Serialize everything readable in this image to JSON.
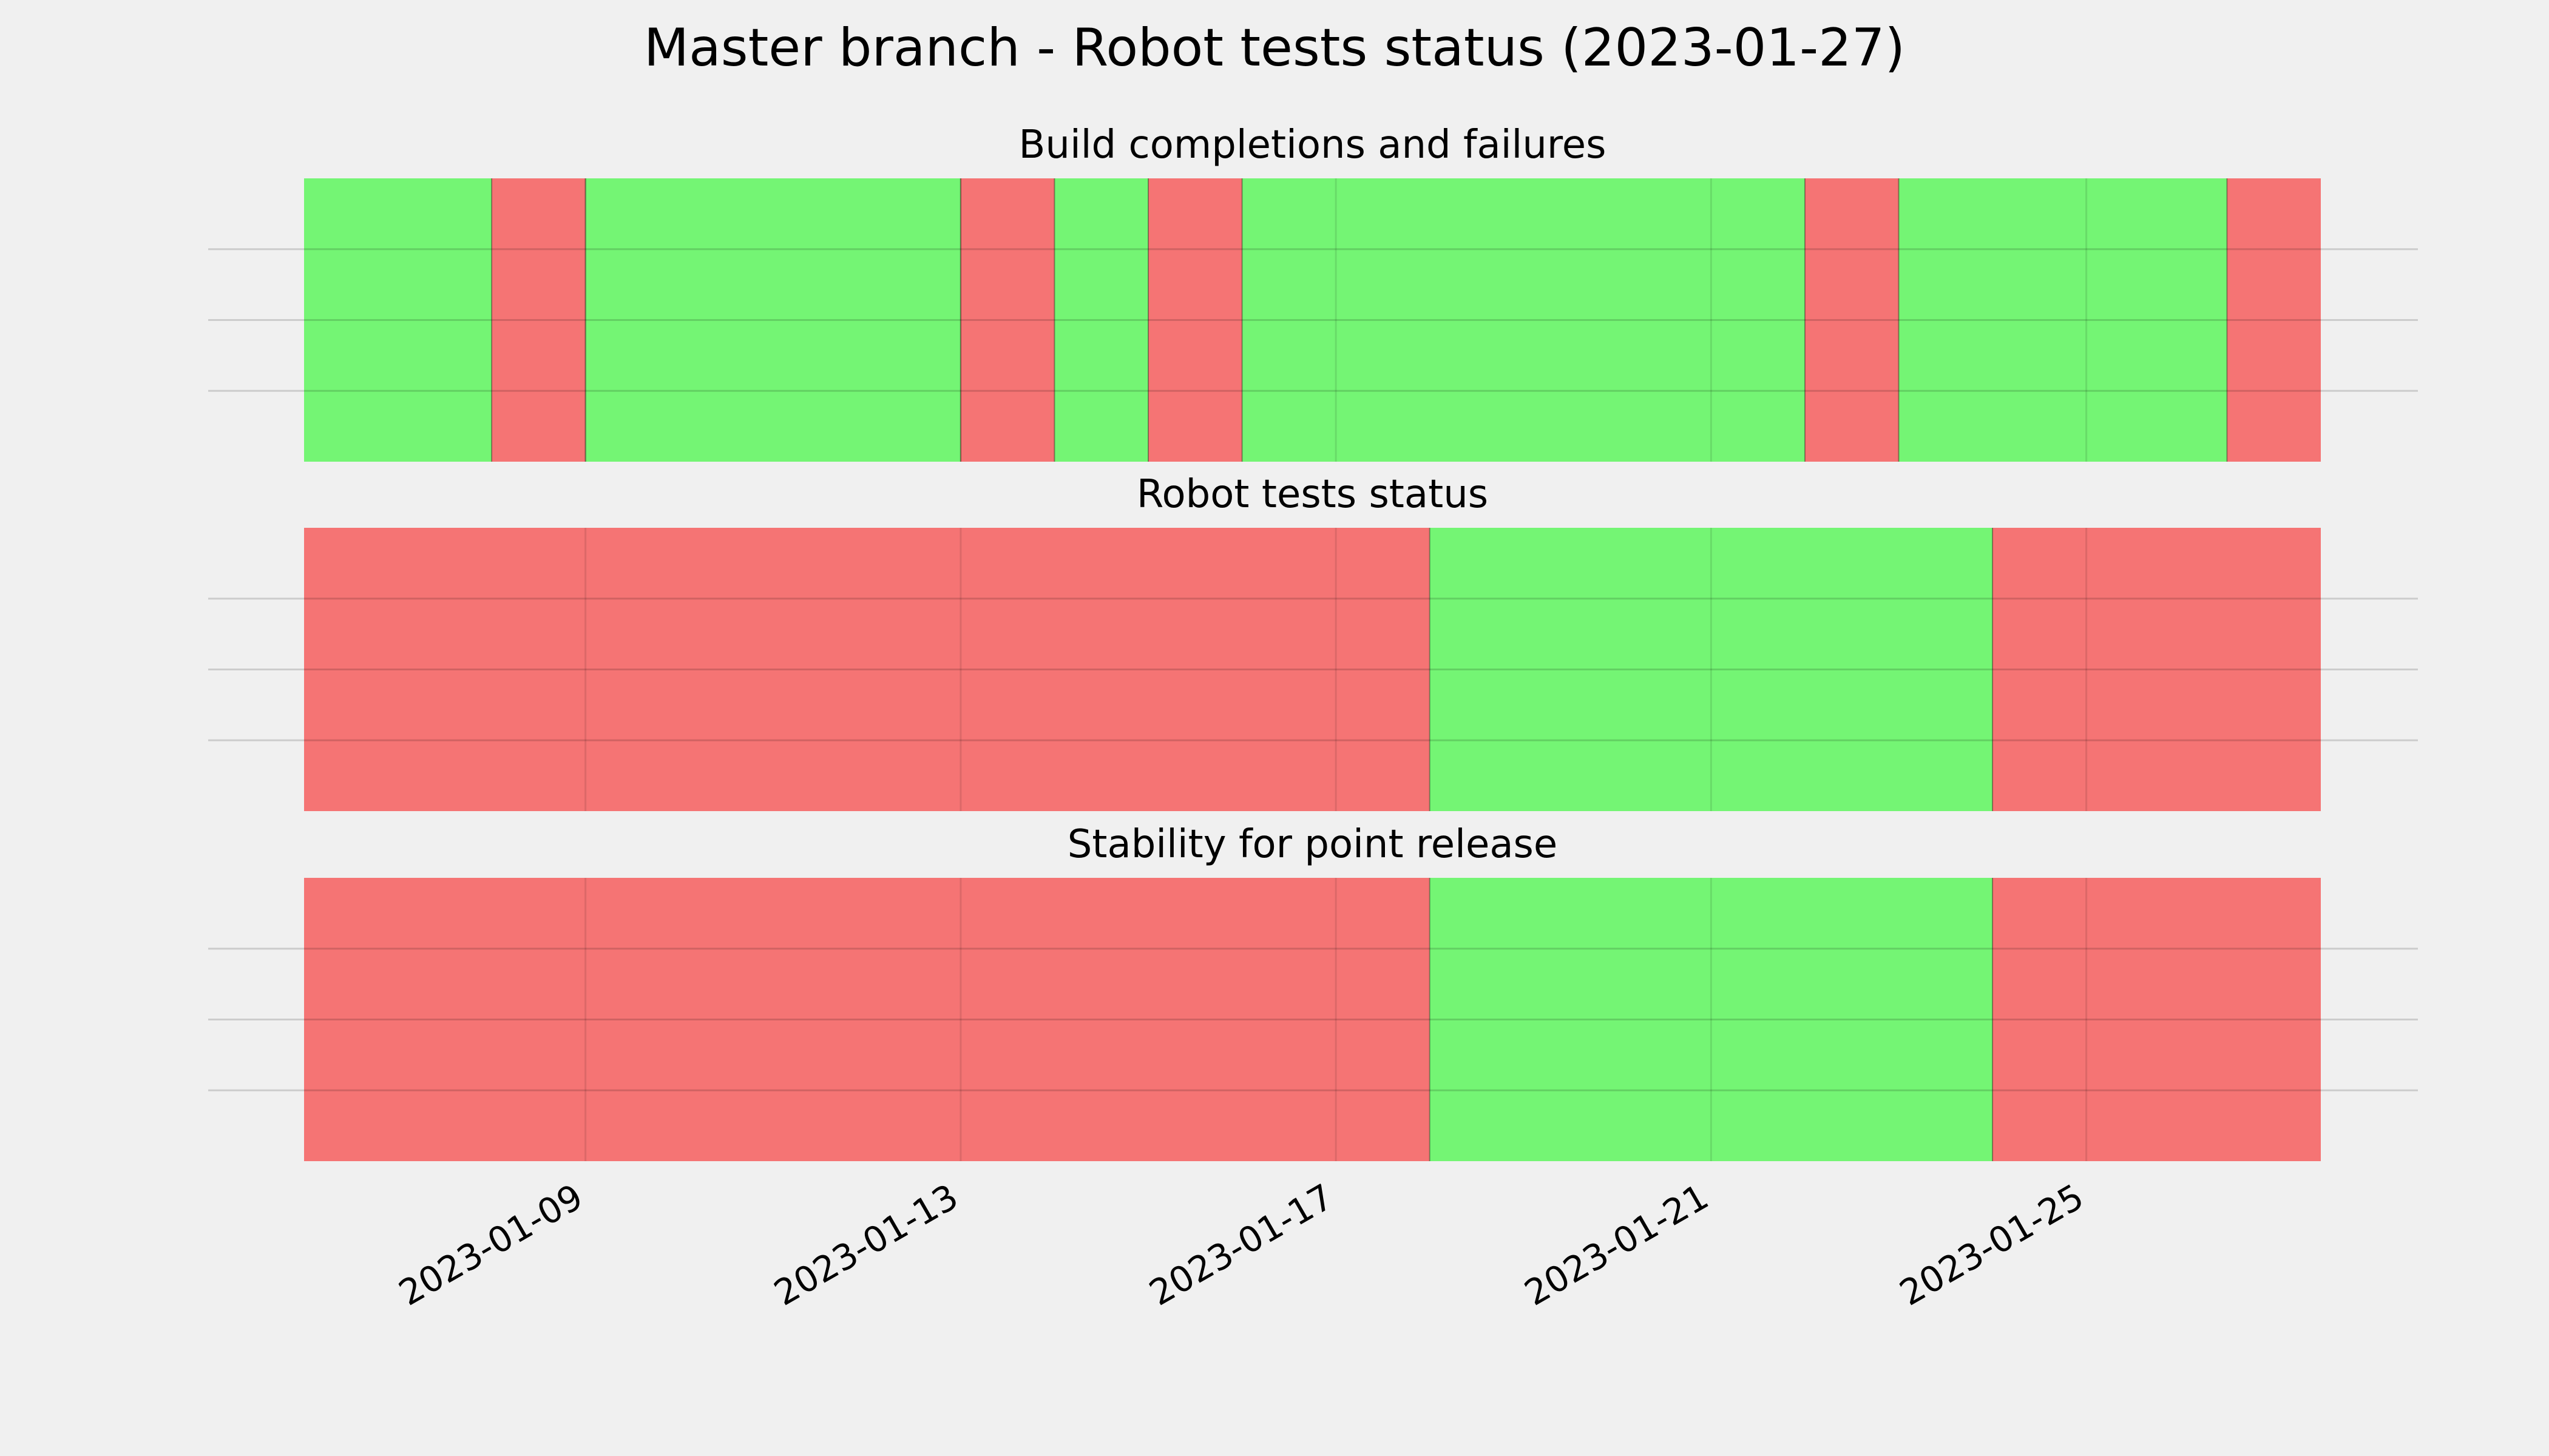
{
  "chart_data": {
    "type": "timeline",
    "title": "Master branch - Robot tests status (2023-01-27)",
    "x_range": [
      "2023-01-06T00:00",
      "2023-01-27T12:00"
    ],
    "x_ticks": [
      "2023-01-09",
      "2023-01-13",
      "2023-01-17",
      "2023-01-21",
      "2023-01-25"
    ],
    "grid": true,
    "status_colors": {
      "pass": "#74f574",
      "fail": "#f57474"
    },
    "panels": [
      {
        "title": "Build completions and failures",
        "segments": [
          {
            "start": "2023-01-06T00:00",
            "end": "2023-01-08T00:00",
            "status": "pass"
          },
          {
            "start": "2023-01-08T00:00",
            "end": "2023-01-09T00:00",
            "status": "fail"
          },
          {
            "start": "2023-01-09T00:00",
            "end": "2023-01-13T00:00",
            "status": "pass"
          },
          {
            "start": "2023-01-13T00:00",
            "end": "2023-01-14T00:00",
            "status": "fail"
          },
          {
            "start": "2023-01-14T00:00",
            "end": "2023-01-15T00:00",
            "status": "pass"
          },
          {
            "start": "2023-01-15T00:00",
            "end": "2023-01-16T00:00",
            "status": "fail"
          },
          {
            "start": "2023-01-16T00:00",
            "end": "2023-01-22T00:00",
            "status": "pass"
          },
          {
            "start": "2023-01-22T00:00",
            "end": "2023-01-23T00:00",
            "status": "fail"
          },
          {
            "start": "2023-01-23T00:00",
            "end": "2023-01-26T12:00",
            "status": "pass"
          },
          {
            "start": "2023-01-26T12:00",
            "end": "2023-01-27T12:00",
            "status": "fail"
          }
        ]
      },
      {
        "title": "Robot tests status",
        "segments": [
          {
            "start": "2023-01-06T00:00",
            "end": "2023-01-18T00:00",
            "status": "fail"
          },
          {
            "start": "2023-01-18T00:00",
            "end": "2023-01-24T00:00",
            "status": "pass"
          },
          {
            "start": "2023-01-24T00:00",
            "end": "2023-01-27T12:00",
            "status": "fail"
          }
        ]
      },
      {
        "title": "Stability for point release",
        "segments": [
          {
            "start": "2023-01-06T00:00",
            "end": "2023-01-18T00:00",
            "status": "fail"
          },
          {
            "start": "2023-01-18T00:00",
            "end": "2023-01-24T00:00",
            "status": "pass"
          },
          {
            "start": "2023-01-24T00:00",
            "end": "2023-01-27T12:00",
            "status": "fail"
          }
        ]
      }
    ]
  }
}
